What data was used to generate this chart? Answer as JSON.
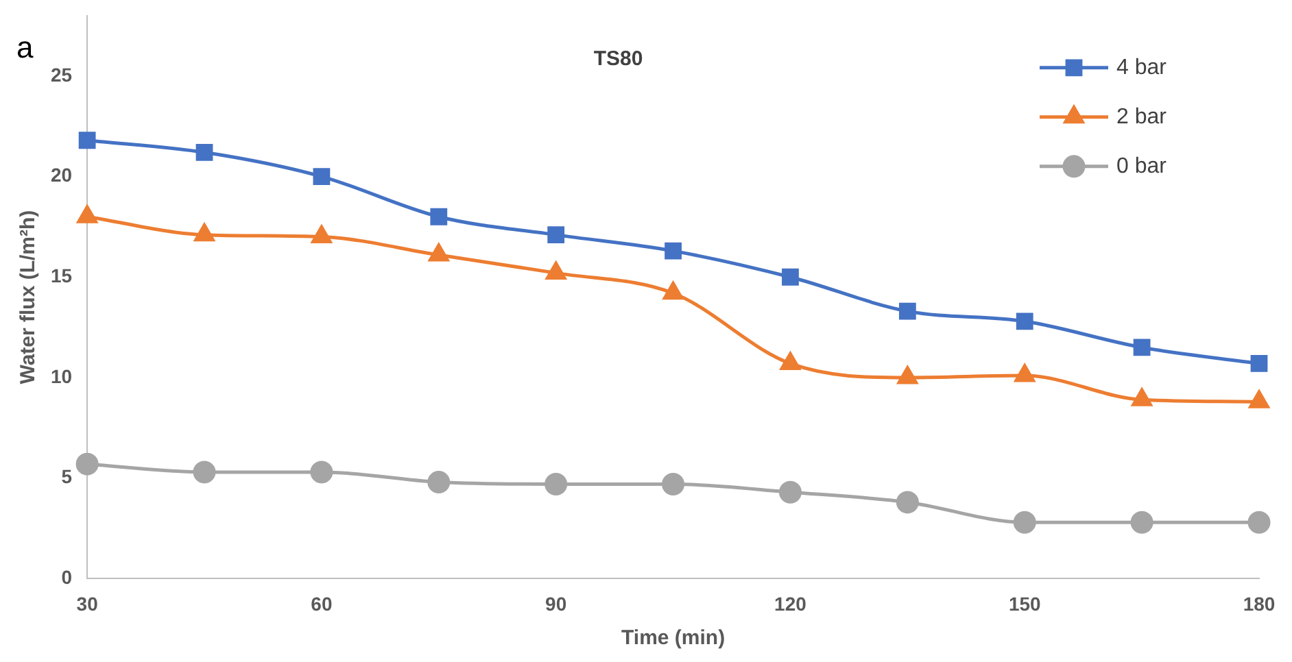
{
  "chart_data": {
    "type": "line",
    "title": "TS80",
    "xlabel": "Time (min)",
    "ylabel": "Water flux (L/m²h)",
    "annotations": [
      "a"
    ],
    "x": [
      30,
      45,
      60,
      75,
      90,
      105,
      120,
      135,
      150,
      165,
      180
    ],
    "xlim": [
      30,
      180
    ],
    "xticks": [
      30,
      60,
      90,
      120,
      150,
      180
    ],
    "ylim": [
      0,
      28
    ],
    "yticks": [
      0,
      5,
      10,
      15,
      20,
      25
    ],
    "grid": false,
    "legend": "top right",
    "series": [
      {
        "name": "4 bar",
        "color": "#4472c4",
        "marker": "square",
        "values": [
          21.8,
          21.2,
          20.0,
          18.0,
          17.1,
          16.3,
          15.0,
          13.3,
          12.8,
          11.5,
          10.7
        ]
      },
      {
        "name": "2 bar",
        "color": "#ed7d31",
        "marker": "triangle",
        "values": [
          18.0,
          17.1,
          17.0,
          16.1,
          15.2,
          14.2,
          10.7,
          10.0,
          10.1,
          8.9,
          8.8
        ]
      },
      {
        "name": "0 bar",
        "color": "#a5a5a5",
        "marker": "circle",
        "values": [
          5.7,
          5.3,
          5.3,
          4.8,
          4.7,
          4.7,
          4.3,
          3.8,
          2.8,
          2.8,
          2.8
        ]
      }
    ]
  }
}
